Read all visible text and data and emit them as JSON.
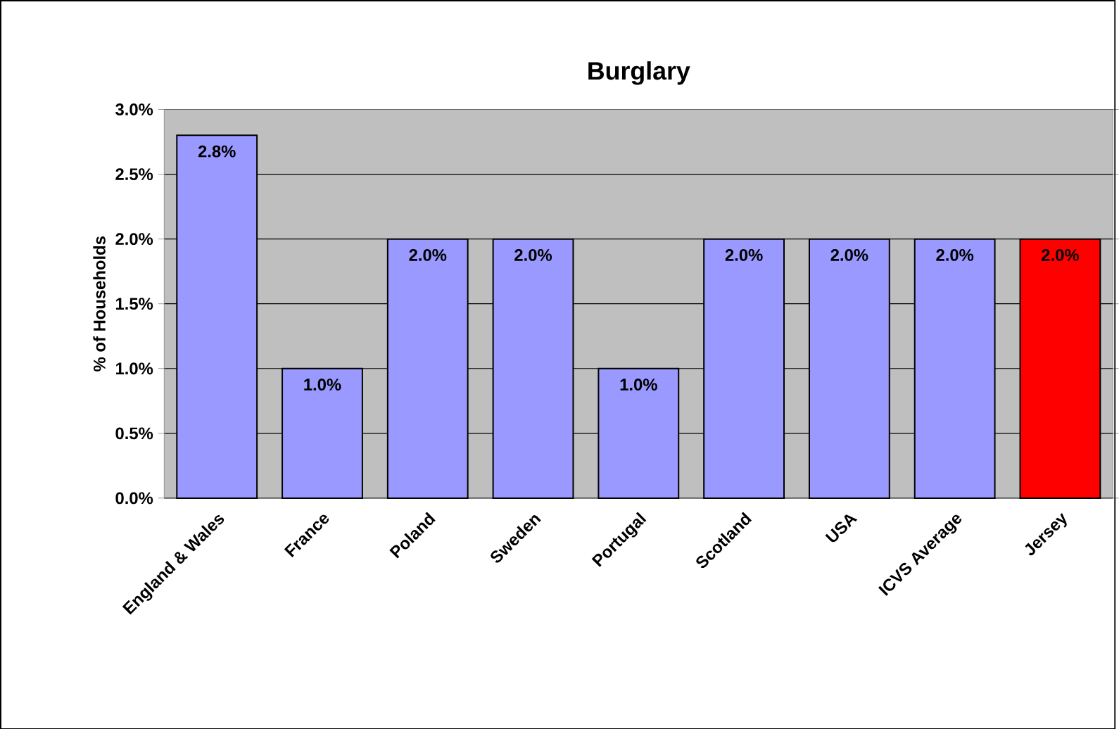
{
  "chart_data": {
    "type": "bar",
    "title": "Burglary",
    "ylabel": "% of Households",
    "categories": [
      "England & Wales",
      "France",
      "Poland",
      "Sweden",
      "Portugal",
      "Scotland",
      "USA",
      "ICVS Average",
      "Jersey"
    ],
    "values": [
      2.8,
      1.0,
      2.0,
      2.0,
      1.0,
      2.0,
      2.0,
      2.0,
      2.0
    ],
    "colors": [
      "#9999ff",
      "#9999ff",
      "#9999ff",
      "#9999ff",
      "#9999ff",
      "#9999ff",
      "#9999ff",
      "#9999ff",
      "#ff0000"
    ],
    "value_labels": [
      "2.8%",
      "1.0%",
      "2.0%",
      "2.0%",
      "1.0%",
      "2.0%",
      "2.0%",
      "2.0%",
      "2.0%"
    ],
    "ylim": [
      0,
      3
    ],
    "yticks": [
      {
        "value": 0,
        "label": "0.0%"
      },
      {
        "value": 0.5,
        "label": "0.5%"
      },
      {
        "value": 1,
        "label": "1.0%"
      },
      {
        "value": 1.5,
        "label": "1.5%"
      },
      {
        "value": 2,
        "label": "2.0%"
      },
      {
        "value": 2.5,
        "label": "2.5%"
      },
      {
        "value": 3,
        "label": "3.0%"
      }
    ],
    "grid": "y"
  }
}
